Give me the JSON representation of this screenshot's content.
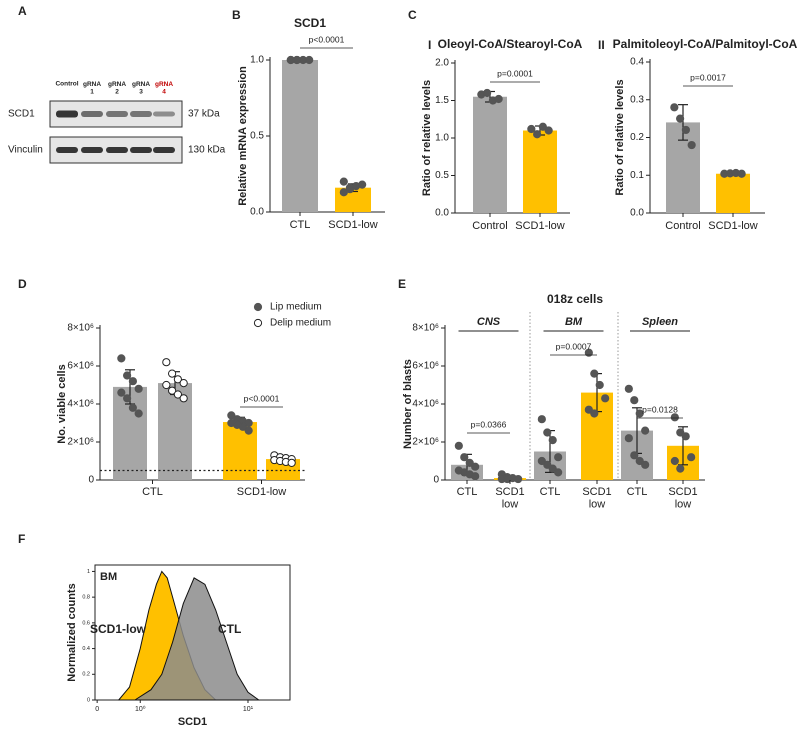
{
  "blot": {
    "panel": "A",
    "lanes": [
      {
        "label": "Control",
        "color": "#222222"
      },
      {
        "label": "gRNA\n1",
        "color": "#222222"
      },
      {
        "label": "gRNA\n2",
        "color": "#222222"
      },
      {
        "label": "gRNA\n3",
        "color": "#222222"
      },
      {
        "label": "gRNA\n4",
        "color": "#c00000"
      }
    ],
    "proteins": [
      {
        "name": "SCD1",
        "size": "37 kDa"
      },
      {
        "name": "Vinculin",
        "size": "130 kDa"
      }
    ]
  },
  "chart_data": [
    {
      "type": "bar",
      "panel": "B",
      "title": "SCD1",
      "ylabel": "Relative mRNA expression",
      "categories": [
        "CTL",
        "SCD1-low"
      ],
      "colors": [
        "#a6a6a6",
        "#ffc000"
      ],
      "values": [
        1.0,
        0.16
      ],
      "errors": [
        0,
        0.025
      ],
      "points": [
        [
          1.0,
          1.0,
          1.0,
          1.0,
          1.0,
          1.0
        ],
        [
          0.13,
          0.15,
          0.17,
          0.18,
          0.2,
          0.16
        ]
      ],
      "ylim": [
        0,
        1.0
      ],
      "yticks": [
        {
          "value": 0,
          "label": "0.0"
        },
        {
          "value": 0.5,
          "label": "0.5"
        },
        {
          "value": 1.0,
          "label": "1.0"
        }
      ],
      "annotations": [
        {
          "text": "p<0.0001"
        }
      ]
    },
    {
      "type": "bar",
      "panel": "I",
      "group_label": "C",
      "title": "Oleoyl-CoA/Stearoyl-CoA",
      "ylabel": "Ratio of relative levels",
      "categories": [
        "Control",
        "SCD1-low"
      ],
      "colors": [
        "#a6a6a6",
        "#ffc000"
      ],
      "values": [
        1.55,
        1.1
      ],
      "errors": [
        0.07,
        0.06
      ],
      "points": [
        [
          1.58,
          1.6,
          1.5,
          1.52
        ],
        [
          1.12,
          1.05,
          1.15,
          1.1
        ]
      ],
      "ylim": [
        0,
        2.0
      ],
      "yticks": [
        {
          "value": 0,
          "label": "0.0"
        },
        0.5,
        {
          "value": 1.0,
          "label": "1.0"
        },
        1.5,
        {
          "value": 2.0,
          "label": "2.0"
        }
      ],
      "annotations": [
        {
          "text": "p=0.0001"
        }
      ]
    },
    {
      "type": "bar",
      "panel": "II",
      "title": "Palmitoleoyl-CoA/Palmitoyl-CoA",
      "ylabel": "Ratio of relative levels",
      "categories": [
        "Control",
        "SCD1-low"
      ],
      "colors": [
        "#a6a6a6",
        "#ffc000"
      ],
      "values": [
        0.24,
        0.104
      ],
      "errors": [
        0.047,
        0.003
      ],
      "points": [
        [
          0.28,
          0.25,
          0.22,
          0.18
        ],
        [
          0.104,
          0.105,
          0.106,
          0.104
        ]
      ],
      "ylim": [
        0,
        0.4
      ],
      "yticks": [
        {
          "value": 0,
          "label": "0.0"
        },
        0.1,
        0.2,
        0.3,
        0.4
      ],
      "annotations": [
        {
          "text": "p=0.0017"
        }
      ]
    },
    {
      "type": "grouped_bar",
      "panel": "D",
      "ylabel": "No. viable cells",
      "categories": [
        "CTL",
        "SCD1-low"
      ],
      "colors": [
        "#a6a6a6",
        "#ffc000"
      ],
      "series": [
        {
          "name": "Lip medium",
          "marker": "filled",
          "values": [
            4900000,
            3050000
          ],
          "errors": [
            900000,
            250000
          ],
          "points": [
            [
              6400000,
              5500000,
              5200000,
              4800000,
              4600000,
              4300000,
              3800000,
              3500000
            ],
            [
              3400000,
              3200000,
              3100000,
              3000000,
              3000000,
              2900000,
              2800000,
              2600000
            ]
          ]
        },
        {
          "name": "Delip medium",
          "marker": "open",
          "values": [
            5100000,
            1100000
          ],
          "errors": [
            600000,
            150000
          ],
          "points": [
            [
              6200000,
              5600000,
              5300000,
              5100000,
              5000000,
              4700000,
              4500000,
              4300000
            ],
            [
              1300000,
              1200000,
              1150000,
              1100000,
              1050000,
              1000000,
              950000,
              900000
            ]
          ]
        }
      ],
      "reference_line": 500000,
      "ylim": [
        0,
        8000000
      ],
      "yticks": [
        0,
        {
          "value": 2000000,
          "label": "2×10⁶"
        },
        {
          "value": 4000000,
          "label": "4×10⁶"
        },
        {
          "value": 6000000,
          "label": "6×10⁶"
        },
        {
          "value": 8000000,
          "label": "8×10⁶"
        }
      ],
      "annotations": [
        {
          "text": "p<0.0001"
        }
      ]
    },
    {
      "type": "bar",
      "panel": "E",
      "title": "018z cells",
      "ylabel": "Number of blasts",
      "sections": [
        "CNS",
        "BM",
        "Spleen"
      ],
      "categories": [
        "CTL",
        "SCD1\nlow",
        "CTL",
        "SCD1\nlow",
        "CTL",
        "SCD1\nlow"
      ],
      "colors": [
        "#a6a6a6",
        "#ffc000",
        "#a6a6a6",
        "#ffc000",
        "#a6a6a6",
        "#ffc000"
      ],
      "values": [
        800000,
        100000,
        1500000,
        4600000,
        2600000,
        1800000
      ],
      "errors": [
        550000,
        50000,
        1100000,
        1000000,
        1200000,
        1000000
      ],
      "points": [
        [
          1800000,
          1200000,
          900000,
          700000,
          500000,
          400000,
          300000,
          200000
        ],
        [
          300000,
          150000,
          100000,
          50000,
          50000,
          50000
        ],
        [
          3200000,
          2500000,
          2100000,
          1200000,
          1000000,
          800000,
          600000,
          400000
        ],
        [
          6700000,
          5600000,
          5000000,
          4300000,
          3700000,
          3500000
        ],
        [
          4800000,
          4200000,
          3500000,
          2600000,
          2200000,
          1300000,
          1000000,
          800000
        ],
        [
          3300000,
          2500000,
          2300000,
          1200000,
          1000000,
          600000
        ]
      ],
      "ylim": [
        0,
        8000000
      ],
      "yticks": [
        0,
        {
          "value": 2000000,
          "label": "2×10⁶"
        },
        {
          "value": 4000000,
          "label": "4×10⁶"
        },
        {
          "value": 6000000,
          "label": "6×10⁶"
        },
        {
          "value": 8000000,
          "label": "8×10⁶"
        }
      ],
      "annotations": [
        {
          "text": "p=0.0366"
        },
        {
          "text": "p=0.0007"
        },
        {
          "text": "p=0.0128"
        }
      ]
    },
    {
      "type": "flow_histogram",
      "panel": "F",
      "inset_label": "BM",
      "xlabel": "SCD1",
      "ylabel": "Normalized counts",
      "series": [
        {
          "name": "SCD1-low",
          "color": "#ffc000",
          "x": [
            -0.2,
            -0.1,
            0,
            0.08,
            0.15,
            0.2,
            0.25,
            0.3,
            0.4,
            0.5,
            0.6,
            0.7
          ],
          "values": [
            0,
            0.1,
            0.4,
            0.7,
            0.9,
            1.0,
            0.95,
            0.8,
            0.5,
            0.25,
            0.08,
            0
          ]
        },
        {
          "name": "CTL",
          "color": "#8c8c8c",
          "x": [
            -0.05,
            0.1,
            0.2,
            0.3,
            0.4,
            0.5,
            0.6,
            0.7,
            0.8,
            0.9,
            1.0,
            1.1
          ],
          "values": [
            0,
            0.08,
            0.2,
            0.45,
            0.75,
            0.95,
            0.9,
            0.7,
            0.45,
            0.2,
            0.06,
            0
          ]
        }
      ],
      "xlim": [
        -0.42,
        1.39
      ],
      "xticks": [
        {
          "value": -0.4,
          "label": "0"
        },
        {
          "value": 0,
          "label": "10⁰"
        },
        {
          "value": 1,
          "label": "10¹"
        }
      ],
      "ylim": [
        0,
        1.05
      ],
      "yticks": [
        0,
        0.2,
        0.4,
        0.6,
        0.8,
        1
      ]
    }
  ]
}
